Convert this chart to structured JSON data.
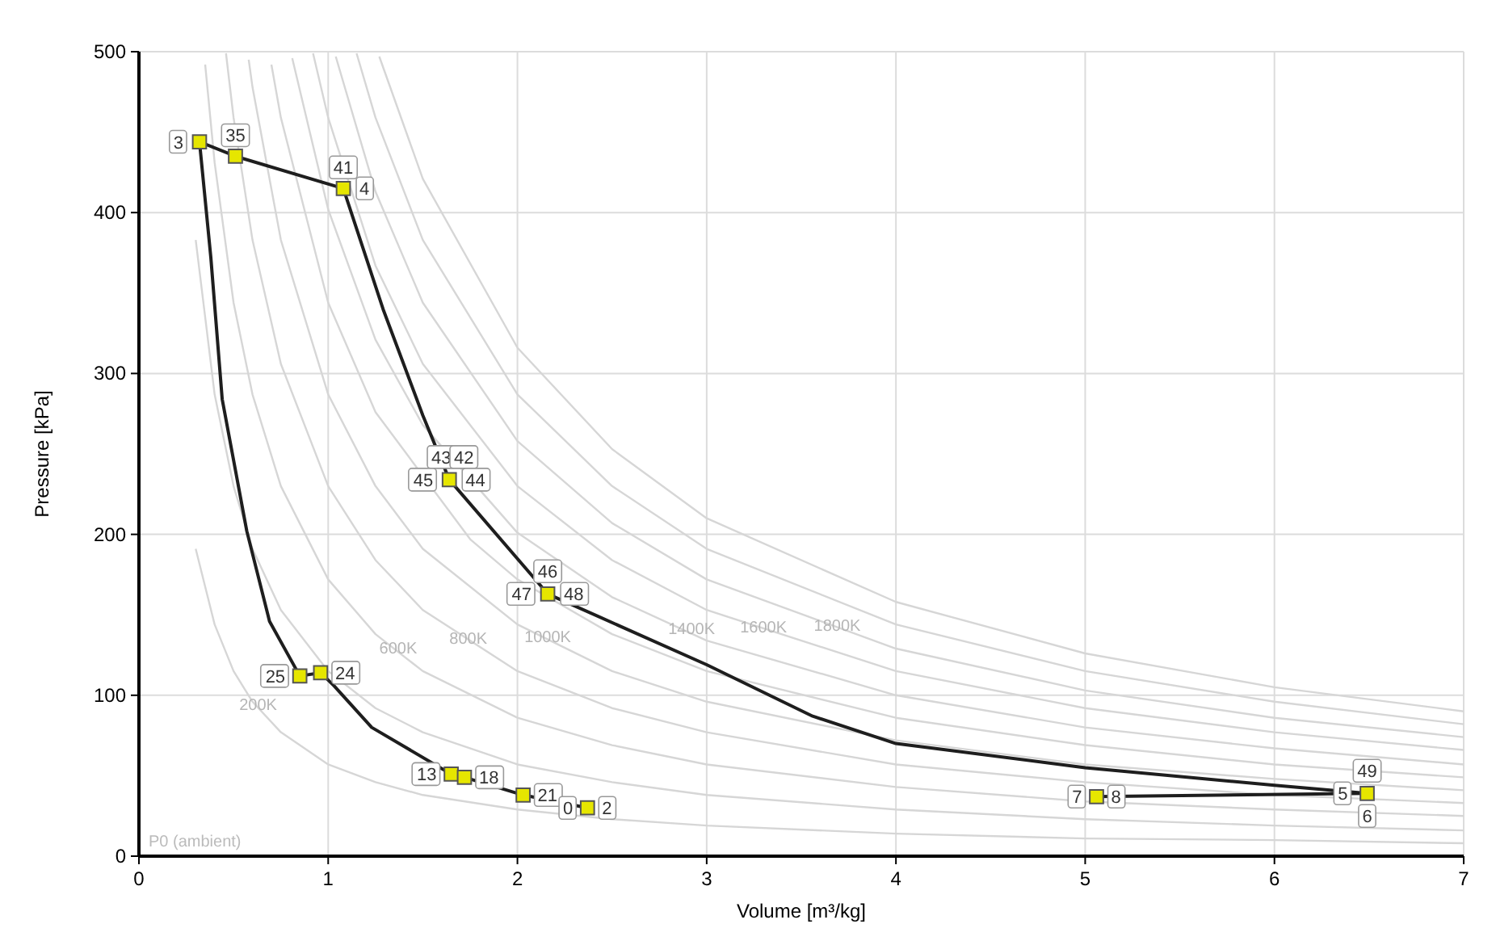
{
  "chart_data": {
    "type": "line",
    "xlabel": "Volume [m³/kg]",
    "ylabel": "Pressure [kPa]",
    "xlim": [
      0,
      7
    ],
    "ylim": [
      0,
      500
    ],
    "xticks": [
      0,
      1,
      2,
      3,
      4,
      5,
      6,
      7
    ],
    "yticks": [
      0,
      100,
      200,
      300,
      400,
      500
    ],
    "grid": true,
    "series": [
      {
        "color": "#d6d6d6",
        "x": [
          0.3,
          0.4,
          0.5,
          0.6,
          0.75,
          1,
          1.25,
          1.5,
          2,
          2.5,
          3,
          4,
          5,
          6,
          7
        ],
        "values": [
          191,
          144,
          115,
          96,
          77,
          57,
          46,
          38,
          29,
          23,
          19,
          14,
          11,
          10,
          8
        ]
      },
      {
        "color": "#d6d6d6",
        "x": [
          0.3,
          0.4,
          0.5,
          0.6,
          0.75,
          1,
          1.25,
          1.5,
          2,
          2.5,
          3,
          4,
          5,
          6,
          7
        ],
        "values": [
          383,
          287,
          230,
          191,
          153,
          115,
          92,
          77,
          57,
          46,
          38,
          29,
          23,
          19,
          16
        ]
      },
      {
        "color": "#d6d6d6",
        "x": [
          0.35,
          0.4,
          0.5,
          0.6,
          0.75,
          1,
          1.25,
          1.5,
          2,
          2.5,
          3,
          4,
          5,
          6,
          7
        ],
        "values": [
          492,
          431,
          344,
          287,
          230,
          172,
          138,
          115,
          86,
          69,
          57,
          43,
          34,
          29,
          25
        ]
      },
      {
        "color": "#d6d6d6",
        "x": [
          0.46,
          0.5,
          0.6,
          0.75,
          1,
          1.25,
          1.5,
          2,
          2.5,
          3,
          4,
          5,
          6,
          7
        ],
        "values": [
          499,
          459,
          383,
          306,
          230,
          184,
          153,
          115,
          92,
          77,
          57,
          46,
          38,
          33
        ]
      },
      {
        "color": "#d6d6d6",
        "x": [
          0.58,
          0.6,
          0.75,
          1,
          1.25,
          1.5,
          2,
          2.5,
          3,
          4,
          5,
          6,
          7
        ],
        "values": [
          495,
          478,
          383,
          287,
          230,
          191,
          144,
          115,
          96,
          72,
          57,
          48,
          41
        ]
      },
      {
        "color": "#d6d6d6",
        "x": [
          0.7,
          0.75,
          1,
          1.25,
          1.75,
          2,
          2.5,
          3,
          4,
          5,
          6,
          7
        ],
        "values": [
          492,
          459,
          344,
          276,
          197,
          172,
          138,
          115,
          86,
          69,
          57,
          49
        ]
      },
      {
        "color": "#d6d6d6",
        "x": [
          0.81,
          1,
          1.25,
          1.5,
          2,
          2.5,
          3,
          4,
          5,
          6,
          7
        ],
        "values": [
          496,
          402,
          321,
          268,
          201,
          161,
          134,
          100,
          80,
          67,
          57
        ]
      },
      {
        "color": "#d6d6d6",
        "x": [
          0.92,
          1,
          1.25,
          1.5,
          2,
          2.5,
          3,
          4,
          5,
          6,
          7
        ],
        "values": [
          499,
          459,
          367,
          306,
          230,
          184,
          153,
          115,
          92,
          77,
          66
        ]
      },
      {
        "color": "#d6d6d6",
        "x": [
          1.04,
          1.25,
          1.5,
          2,
          2.5,
          3,
          4,
          5,
          6,
          7
        ],
        "values": [
          497,
          413,
          344,
          258,
          207,
          172,
          129,
          103,
          86,
          74
        ]
      },
      {
        "color": "#d6d6d6",
        "x": [
          1.15,
          1.25,
          1.5,
          2,
          2.5,
          3,
          4,
          5,
          6,
          7
        ],
        "values": [
          499,
          459,
          383,
          287,
          230,
          191,
          144,
          115,
          96,
          82
        ]
      },
      {
        "color": "#d6d6d6",
        "x": [
          1.27,
          1.5,
          2,
          2.5,
          3,
          4,
          5,
          6,
          7
        ],
        "values": [
          497,
          421,
          316,
          253,
          210,
          158,
          126,
          105,
          90
        ]
      },
      {
        "color": "#1e1e1e",
        "x": [
          2.37,
          2.03,
          1.72,
          1.65,
          1.23,
          1.03,
          0.96,
          0.85,
          0.69,
          0.57,
          0.44,
          0.38,
          0.32,
          0.51,
          1.08,
          1.29,
          1.5,
          1.64,
          2.16,
          3.0,
          3.56,
          4,
          5,
          6,
          6.49,
          5.06
        ],
        "values": [
          30,
          38,
          49,
          51,
          80,
          106,
          114,
          112,
          146,
          202,
          284,
          372,
          444,
          435,
          415,
          340,
          274,
          234,
          163,
          119,
          87,
          70,
          55,
          44,
          39,
          37
        ]
      },
      {
        "type": "scatter",
        "marker": "square",
        "color": "#e6e600",
        "x": [
          0.32,
          0.51,
          1.08,
          1.64,
          2.16,
          6.49,
          5.06,
          0.85,
          0.96,
          1.65,
          1.72,
          2.03,
          2.37
        ],
        "values": [
          444,
          435,
          415,
          234,
          163,
          39,
          37,
          112,
          114,
          51,
          49,
          38,
          30
        ]
      }
    ],
    "annotations": [
      {
        "text": "3",
        "x": 0.32,
        "y": 444
      },
      {
        "text": "35",
        "x": 0.51,
        "y": 435
      },
      {
        "text": "41",
        "x": 1.08,
        "y": 415
      },
      {
        "text": "4",
        "x": 1.08,
        "y": 415
      },
      {
        "text": "43",
        "x": 1.64,
        "y": 234
      },
      {
        "text": "42",
        "x": 1.64,
        "y": 234
      },
      {
        "text": "45",
        "x": 1.64,
        "y": 234
      },
      {
        "text": "44",
        "x": 1.64,
        "y": 234
      },
      {
        "text": "46",
        "x": 2.16,
        "y": 163
      },
      {
        "text": "47",
        "x": 2.16,
        "y": 163
      },
      {
        "text": "48",
        "x": 2.16,
        "y": 163
      },
      {
        "text": "49",
        "x": 6.49,
        "y": 39
      },
      {
        "text": "5",
        "x": 6.49,
        "y": 39
      },
      {
        "text": "6",
        "x": 6.49,
        "y": 39
      },
      {
        "text": "7",
        "x": 5.06,
        "y": 37
      },
      {
        "text": "8",
        "x": 5.06,
        "y": 37
      },
      {
        "text": "25",
        "x": 0.85,
        "y": 112
      },
      {
        "text": "24",
        "x": 0.96,
        "y": 114
      },
      {
        "text": "13",
        "x": 1.65,
        "y": 51
      },
      {
        "text": "18",
        "x": 1.72,
        "y": 49
      },
      {
        "text": "21",
        "x": 2.03,
        "y": 38
      },
      {
        "text": "0",
        "x": 2.37,
        "y": 30
      },
      {
        "text": "2",
        "x": 2.37,
        "y": 30
      },
      {
        "text": "200K",
        "x": 0.63,
        "y": 91
      },
      {
        "text": "600K",
        "x": 1.37,
        "y": 126
      },
      {
        "text": "800K",
        "x": 1.74,
        "y": 132
      },
      {
        "text": "1000K",
        "x": 2.16,
        "y": 133
      },
      {
        "text": "1400K",
        "x": 2.92,
        "y": 138
      },
      {
        "text": "1600K",
        "x": 3.3,
        "y": 139
      },
      {
        "text": "1800K",
        "x": 3.69,
        "y": 140
      },
      "P0 (ambient)"
    ]
  }
}
